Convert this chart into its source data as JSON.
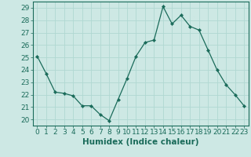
{
  "x": [
    0,
    1,
    2,
    3,
    4,
    5,
    6,
    7,
    8,
    9,
    10,
    11,
    12,
    13,
    14,
    15,
    16,
    17,
    18,
    19,
    20,
    21,
    22,
    23
  ],
  "y": [
    25.1,
    23.7,
    22.2,
    22.1,
    21.9,
    21.1,
    21.1,
    20.4,
    19.9,
    21.6,
    23.3,
    25.1,
    26.2,
    26.4,
    29.1,
    27.7,
    28.4,
    27.5,
    27.2,
    25.6,
    24.0,
    22.8,
    22.0,
    21.1
  ],
  "line_color": "#1a6b5a",
  "marker": "D",
  "marker_size": 2.2,
  "bg_color": "#cde8e4",
  "grid_color": "#b0d8d2",
  "xlabel": "Humidex (Indice chaleur)",
  "ylabel_ticks": [
    20,
    21,
    22,
    23,
    24,
    25,
    26,
    27,
    28,
    29
  ],
  "xlim": [
    -0.5,
    23.5
  ],
  "ylim": [
    19.5,
    29.5
  ],
  "tick_label_color": "#1a6b5a",
  "axis_color": "#1a6b5a",
  "xlabel_fontsize": 7.5,
  "tick_fontsize": 6.5
}
